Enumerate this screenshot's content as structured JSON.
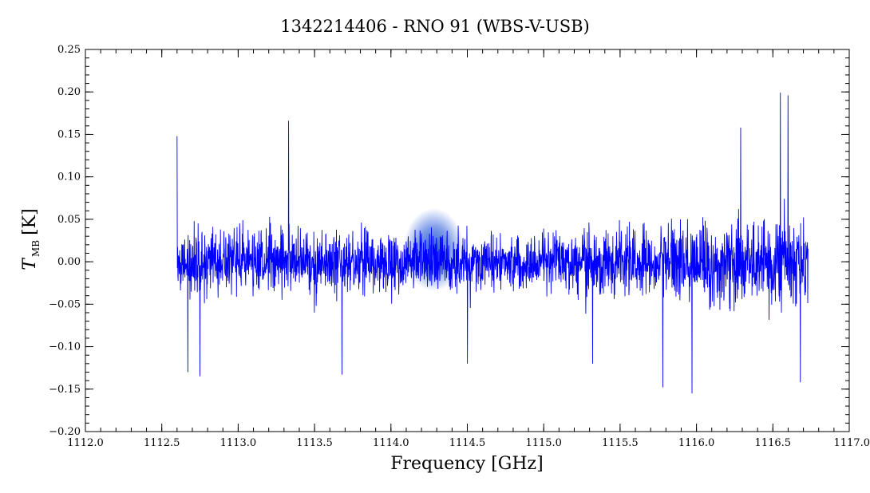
{
  "chart_data": {
    "type": "line",
    "title": "1342214406 - RNO 91 (WBS-V-USB)",
    "xlabel": "Frequency [GHz]",
    "ylabel_main": "T",
    "ylabel_sub": "MB",
    "ylabel_unit": "[K]",
    "xlim": [
      1112.0,
      1117.0
    ],
    "ylim": [
      -0.2,
      0.25
    ],
    "x_ticks": [
      1112.0,
      1112.5,
      1113.0,
      1113.5,
      1114.0,
      1114.5,
      1115.0,
      1115.5,
      1116.0,
      1116.5,
      1117.0
    ],
    "x_tick_labels": [
      "1112.0",
      "1112.5",
      "1113.0",
      "1113.5",
      "1114.0",
      "1114.5",
      "1115.0",
      "1115.5",
      "1116.0",
      "1116.5",
      "1117.0"
    ],
    "y_ticks": [
      -0.2,
      -0.15,
      -0.1,
      -0.05,
      0.0,
      0.05,
      0.1,
      0.15,
      0.2,
      0.25
    ],
    "y_tick_labels": [
      "−0.20",
      "−0.15",
      "−0.10",
      "−0.05",
      "0.00",
      "0.05",
      "0.10",
      "0.15",
      "0.20",
      "0.25"
    ],
    "grid": false,
    "series": [
      {
        "color": "#0000ff",
        "x_range": [
          1112.6,
          1116.73
        ],
        "n_channels": 2400,
        "noise_rms": [
          0.038,
          0.032,
          0.048
        ],
        "seed": 1342214406,
        "spikes": [
          {
            "x": 1112.6,
            "y": 0.148
          },
          {
            "x": 1112.67,
            "y": -0.13
          },
          {
            "x": 1112.75,
            "y": -0.135
          },
          {
            "x": 1113.33,
            "y": 0.166
          },
          {
            "x": 1113.68,
            "y": -0.133
          },
          {
            "x": 1114.5,
            "y": -0.12
          },
          {
            "x": 1115.32,
            "y": -0.12
          },
          {
            "x": 1115.78,
            "y": -0.148
          },
          {
            "x": 1115.97,
            "y": -0.155
          },
          {
            "x": 1116.29,
            "y": 0.158
          },
          {
            "x": 1116.55,
            "y": 0.199
          },
          {
            "x": 1116.6,
            "y": 0.196
          },
          {
            "x": 1116.68,
            "y": -0.142
          }
        ]
      }
    ],
    "watermark": {
      "text": "WISH",
      "color": "#1a4fd6",
      "x": 1114.28,
      "y": 0.0
    }
  }
}
